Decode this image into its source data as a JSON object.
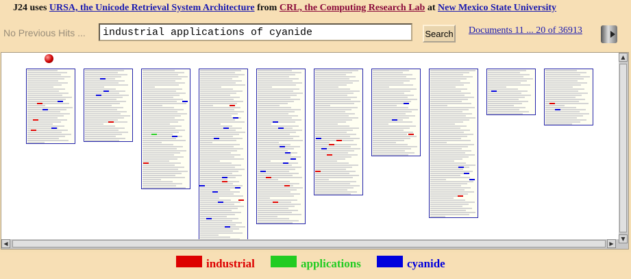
{
  "header": {
    "brand": "J24",
    "uses": "uses",
    "ursa_link": "URSA, the Unicode Retrieval System Architecture",
    "from": "from",
    "crl_link": "CRL, the Computing Research Lab",
    "at": "at",
    "nmsu_link": "New Mexico State University"
  },
  "search": {
    "prev_hits": "No Previous Hits ...",
    "query": "industrial applications of cyanide",
    "button_label": "Search",
    "doc_range": "Documents 11 ... 20 of 36913"
  },
  "colors": {
    "industrial": "#dd0000",
    "applications": "#22cc22",
    "cyanide": "#0000dd"
  },
  "legend": [
    {
      "term": "industrial",
      "color": "#dd0000"
    },
    {
      "term": "applications",
      "color": "#22cc22"
    },
    {
      "term": "cyanide",
      "color": "#0000dd"
    }
  ],
  "documents": [
    {
      "lines": 36,
      "hits": [
        {
          "t": "cyanide",
          "l": 15
        },
        {
          "t": "industrial",
          "l": 16
        },
        {
          "t": "cyanide",
          "l": 19
        },
        {
          "t": "industrial",
          "l": 24
        },
        {
          "t": "cyanide",
          "l": 28
        },
        {
          "t": "industrial",
          "l": 29
        }
      ]
    },
    {
      "lines": 35,
      "hits": [
        {
          "t": "cyanide",
          "l": 4
        },
        {
          "t": "cyanide",
          "l": 10
        },
        {
          "t": "cyanide",
          "l": 12
        },
        {
          "t": "industrial",
          "l": 25
        }
      ]
    },
    {
      "lines": 58,
      "hits": [
        {
          "t": "cyanide",
          "l": 15
        },
        {
          "t": "applications",
          "l": 31
        },
        {
          "t": "cyanide",
          "l": 32
        },
        {
          "t": "industrial",
          "l": 45
        }
      ]
    },
    {
      "lines": 84,
      "hits": [
        {
          "t": "industrial",
          "l": 17
        },
        {
          "t": "cyanide",
          "l": 23
        },
        {
          "t": "cyanide",
          "l": 28
        },
        {
          "t": "cyanide",
          "l": 33
        },
        {
          "t": "cyanide",
          "l": 52
        },
        {
          "t": "cyanide",
          "l": 56
        },
        {
          "t": "industrial",
          "l": 54
        },
        {
          "t": "cyanide",
          "l": 59
        },
        {
          "t": "cyanide",
          "l": 57
        },
        {
          "t": "industrial",
          "l": 63
        },
        {
          "t": "cyanide",
          "l": 64
        },
        {
          "t": "cyanide",
          "l": 72
        },
        {
          "t": "cyanide",
          "l": 76
        }
      ]
    },
    {
      "lines": 75,
      "hits": [
        {
          "t": "cyanide",
          "l": 25
        },
        {
          "t": "cyanide",
          "l": 28
        },
        {
          "t": "cyanide",
          "l": 37
        },
        {
          "t": "cyanide",
          "l": 40
        },
        {
          "t": "cyanide",
          "l": 43
        },
        {
          "t": "cyanide",
          "l": 45
        },
        {
          "t": "cyanide",
          "l": 49
        },
        {
          "t": "industrial",
          "l": 52
        },
        {
          "t": "industrial",
          "l": 56
        },
        {
          "t": "industrial",
          "l": 64
        }
      ]
    },
    {
      "lines": 61,
      "hits": [
        {
          "t": "cyanide",
          "l": 33
        },
        {
          "t": "industrial",
          "l": 34
        },
        {
          "t": "industrial",
          "l": 36
        },
        {
          "t": "cyanide",
          "l": 38
        },
        {
          "t": "industrial",
          "l": 41
        },
        {
          "t": "industrial",
          "l": 49
        }
      ]
    },
    {
      "lines": 42,
      "hits": [
        {
          "t": "cyanide",
          "l": 16
        },
        {
          "t": "cyanide",
          "l": 24
        },
        {
          "t": "industrial",
          "l": 31
        }
      ]
    },
    {
      "lines": 72,
      "hits": [
        {
          "t": "cyanide",
          "l": 47
        },
        {
          "t": "cyanide",
          "l": 50
        },
        {
          "t": "cyanide",
          "l": 53
        },
        {
          "t": "industrial",
          "l": 61
        }
      ]
    },
    {
      "lines": 22,
      "hits": [
        {
          "t": "cyanide",
          "l": 10
        }
      ]
    },
    {
      "lines": 27,
      "hits": [
        {
          "t": "industrial",
          "l": 16
        },
        {
          "t": "cyanide",
          "l": 19
        }
      ]
    }
  ]
}
